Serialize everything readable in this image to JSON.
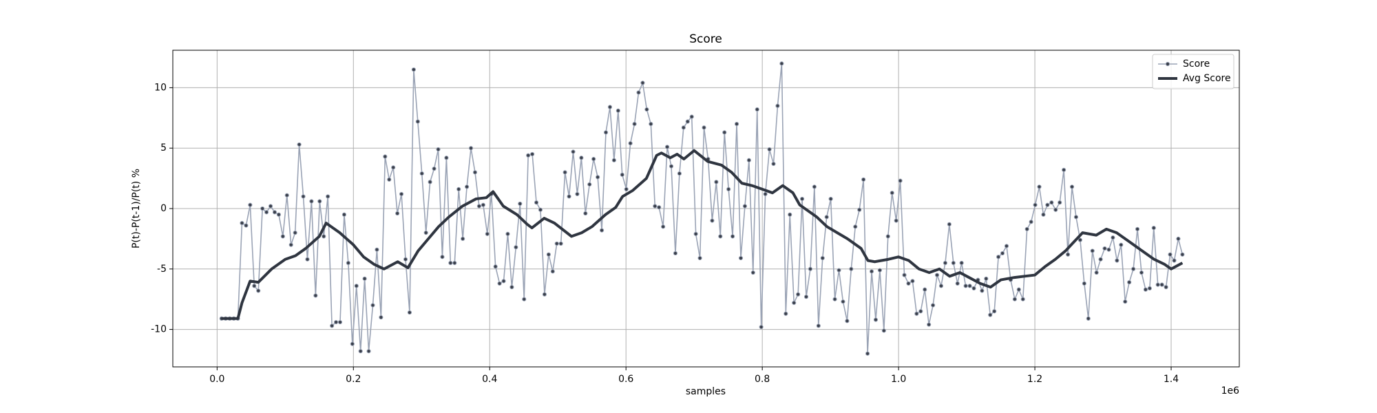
{
  "chart_data": {
    "type": "line",
    "title": "Score",
    "x_label": "samples",
    "y_label": "P(t)-P(t-1)/P(t) %",
    "x_offset_label": "1e6",
    "xlim": [
      -65000,
      1500000
    ],
    "ylim": [
      -13.1,
      13.1
    ],
    "xticks": [
      {
        "value": 0,
        "label": "0.0"
      },
      {
        "value": 200000,
        "label": "0.2"
      },
      {
        "value": 400000,
        "label": "0.4"
      },
      {
        "value": 600000,
        "label": "0.6"
      },
      {
        "value": 800000,
        "label": "0.8"
      },
      {
        "value": 1000000,
        "label": "1.0"
      },
      {
        "value": 1200000,
        "label": "1.2"
      },
      {
        "value": 1400000,
        "label": "1.4"
      }
    ],
    "yticks": [
      -10,
      -5,
      0,
      5,
      10
    ],
    "grid": true,
    "legend": "upper right",
    "series": [
      {
        "name": "Score",
        "color": "#9aa3b5",
        "marker_color": "#3a3f4a",
        "x": [
          6500,
          12500,
          18500,
          24500,
          30500,
          36500,
          42500,
          48500,
          54500,
          60500,
          66500,
          72500,
          78500,
          84500,
          90500,
          96500,
          102500,
          108500,
          114500,
          120500,
          126500,
          132500,
          138500,
          144500,
          150500,
          156500,
          162500,
          168500,
          174500,
          180500,
          186500,
          192500,
          198500,
          204500,
          210500,
          216500,
          222500,
          228500,
          234500,
          240500,
          246500,
          252500,
          258500,
          264500,
          270500,
          276500,
          282500,
          288500,
          294500,
          300500,
          306500,
          312500,
          318500,
          324500,
          330500,
          336500,
          342500,
          348500,
          354500,
          360500,
          366500,
          372500,
          378500,
          384500,
          390500,
          396500,
          402500,
          408500,
          414500,
          420500,
          426500,
          432500,
          438500,
          444500,
          450500,
          456500,
          462500,
          468500,
          474500,
          480500,
          486500,
          492500,
          498500,
          504500,
          510500,
          516500,
          522500,
          528500,
          534500,
          540500,
          546500,
          552500,
          558500,
          564500,
          570500,
          576500,
          582500,
          588500,
          594500,
          600500,
          606500,
          612500,
          618500,
          624500,
          630500,
          636500,
          642500,
          648500,
          654500,
          660500,
          666500,
          672500,
          678500,
          684500,
          690500,
          696500,
          702500,
          708500,
          714500,
          720500,
          726500,
          732500,
          738500,
          744500,
          750500,
          756500,
          762500,
          768500,
          774500,
          780500,
          786500,
          792500,
          798500,
          804500,
          810500,
          816500,
          822500,
          828500,
          834500,
          840500,
          846500,
          852500,
          858500,
          864500,
          870500,
          876500,
          882500,
          888500,
          894500,
          900500,
          906500,
          912500,
          918500,
          924500,
          930500,
          936500,
          942500,
          948500,
          954500,
          960500,
          966500,
          972500,
          978500,
          984500,
          990500,
          996500,
          1002500,
          1008500,
          1014500,
          1020500,
          1026500,
          1032500,
          1038500,
          1044500,
          1050500,
          1056500,
          1062500,
          1068500,
          1074500,
          1080500,
          1086500,
          1092500,
          1098500,
          1104500,
          1110500,
          1116500,
          1122500,
          1128500,
          1134500,
          1140500,
          1146500,
          1152500,
          1158500,
          1164500,
          1170500,
          1176500,
          1182500,
          1188500,
          1194500,
          1200500,
          1206500,
          1212500,
          1218500,
          1224500,
          1230500,
          1236500,
          1242500,
          1248500,
          1254500,
          1260500,
          1266500,
          1272500,
          1278500,
          1284500,
          1290500,
          1296500,
          1302500,
          1308500,
          1314500,
          1320500,
          1326500,
          1332500,
          1338500,
          1344500,
          1350500,
          1356500,
          1362500,
          1368500,
          1374500,
          1380500,
          1386500,
          1392500,
          1398500,
          1404500,
          1410500,
          1416500
        ],
        "values": [
          -9.1,
          -9.1,
          -9.1,
          -9.1,
          -9.1,
          -1.2,
          -1.4,
          0.3,
          -6.4,
          -6.8,
          0,
          -0.3,
          0.2,
          -0.3,
          -0.5,
          -2.3,
          1.1,
          -3,
          -2,
          5.3,
          1,
          -4.2,
          0.6,
          -7.2,
          0.6,
          -2.3,
          1,
          -9.7,
          -9.4,
          -9.4,
          -0.5,
          -4.5,
          -11.2,
          -6.4,
          -11.8,
          -5.8,
          -11.8,
          -8,
          -3.4,
          -9,
          4.3,
          2.4,
          3.4,
          -0.4,
          1.2,
          -4.2,
          -8.6,
          11.5,
          7.2,
          2.9,
          -2,
          2.2,
          3.3,
          4.9,
          -4,
          4.2,
          -4.5,
          -4.5,
          1.6,
          -2.5,
          1.8,
          5,
          3,
          0.2,
          0.3,
          -2.1,
          1.2,
          -4.8,
          -6.2,
          -6,
          -2.1,
          -6.5,
          -3.2,
          0.4,
          -7.5,
          4.4,
          4.5,
          0.5,
          -0.1,
          -7.1,
          -3.8,
          -5.2,
          -2.9,
          -2.9,
          3,
          1,
          4.7,
          1.2,
          4.2,
          -0.4,
          2,
          4.1,
          2.6,
          -1.8,
          6.3,
          8.4,
          4,
          8.1,
          2.8,
          1.6,
          5.4,
          7,
          9.6,
          10.4,
          8.2,
          7,
          0.2,
          0.1,
          -1.5,
          5.1,
          3.5,
          -3.7,
          2.9,
          6.7,
          7.2,
          7.6,
          -2.1,
          -4.1,
          6.7,
          4.1,
          -1,
          2.2,
          -2.3,
          6.3,
          1.6,
          -2.3,
          7,
          -4.1,
          0.2,
          4,
          -5.3,
          8.2,
          -9.8,
          1.2,
          4.9,
          3.7,
          8.5,
          12,
          -8.7,
          -0.5,
          -7.8,
          -7.1,
          0.8,
          -7.3,
          -5,
          1.8,
          -9.7,
          -4.1,
          -0.7,
          0.8,
          -7.5,
          -5.1,
          -7.7,
          -9.3,
          -5,
          -1.5,
          -0.1,
          2.4,
          -12,
          -5.2,
          -9.2,
          -5.1,
          -10.1,
          -2.3,
          1.3,
          -1,
          2.3,
          -5.5,
          -6.2,
          -6,
          -8.7,
          -8.5,
          -6.7,
          -9.6,
          -8,
          -5.5,
          -6.4,
          -4.5,
          -1.3,
          -4.5,
          -6.2,
          -4.5,
          -6.4,
          -6.4,
          -6.6,
          -5.9,
          -6.8,
          -5.8,
          -8.8,
          -8.5,
          -4,
          -3.7,
          -3.1,
          -5.9,
          -7.5,
          -6.7,
          -7.5,
          -1.7,
          -1.1,
          0.3,
          1.8,
          -0.5,
          0.3,
          0.5,
          -0.1,
          0.5,
          3.2,
          -3.8,
          1.8,
          -0.7,
          -2.6,
          -6.2,
          -9.1,
          -3.5,
          -5.3,
          -4.2,
          -3.3,
          -3.4,
          -2.4,
          -4.3,
          -3,
          -7.7,
          -6.1,
          -5,
          -1.7,
          -5.3,
          -6.7,
          -6.6,
          -1.6,
          -6.3,
          -6.3,
          -6.5,
          -3.8,
          -4.3,
          -2.5,
          -3.8
        ]
      },
      {
        "name": "Avg Score",
        "color": "#2f3540",
        "x": [
          6500,
          12500,
          18500,
          24500,
          30500,
          36500,
          48500,
          60500,
          80000,
          100000,
          115000,
          130000,
          150000,
          160000,
          180000,
          200000,
          215000,
          230000,
          245000,
          265000,
          280000,
          295000,
          310000,
          325000,
          340000,
          360000,
          380000,
          395000,
          405000,
          420000,
          440000,
          455000,
          462000,
          480000,
          495000,
          520000,
          535000,
          550000,
          570000,
          585000,
          595000,
          610000,
          630000,
          645000,
          652000,
          665000,
          675000,
          685000,
          700000,
          720000,
          740000,
          755000,
          770000,
          785000,
          800000,
          815000,
          830000,
          845000,
          855000,
          870000,
          880000,
          895000,
          910000,
          925000,
          945000,
          955000,
          965000,
          985000,
          1000000,
          1015000,
          1030000,
          1045000,
          1060000,
          1075000,
          1090000,
          1100000,
          1120000,
          1135000,
          1150000,
          1170000,
          1185000,
          1200000,
          1215000,
          1230000,
          1245000,
          1255000,
          1270000,
          1290000,
          1305000,
          1320000,
          1340000,
          1360000,
          1375000,
          1390000,
          1400000,
          1416500
        ],
        "values": [
          -9.1,
          -9.1,
          -9.1,
          -9.1,
          -9.1,
          -7.8,
          -6,
          -6.1,
          -5,
          -4.2,
          -3.9,
          -3.3,
          -2.3,
          -1.2,
          -2,
          -3,
          -4,
          -4.6,
          -5,
          -4.4,
          -4.9,
          -3.5,
          -2.5,
          -1.5,
          -0.7,
          0.2,
          0.8,
          0.9,
          1.4,
          0.2,
          -0.5,
          -1.3,
          -1.6,
          -0.8,
          -1.2,
          -2.3,
          -2,
          -1.5,
          -0.5,
          0.1,
          1,
          1.5,
          2.5,
          4.4,
          4.6,
          4.2,
          4.5,
          4.1,
          4.8,
          3.9,
          3.6,
          3,
          2.1,
          1.9,
          1.6,
          1.3,
          1.9,
          1.3,
          0.3,
          -0.3,
          -0.7,
          -1.5,
          -2,
          -2.5,
          -3.3,
          -4.3,
          -4.4,
          -4.2,
          -4,
          -4.3,
          -5,
          -5.3,
          -5,
          -5.6,
          -5.3,
          -5.6,
          -6.2,
          -6.5,
          -5.9,
          -5.7,
          -5.6,
          -5.5,
          -4.8,
          -4.2,
          -3.5,
          -2.9,
          -2,
          -2.2,
          -1.7,
          -2,
          -2.8,
          -3.6,
          -4.2,
          -4.6,
          -5,
          -4.5
        ]
      }
    ]
  }
}
